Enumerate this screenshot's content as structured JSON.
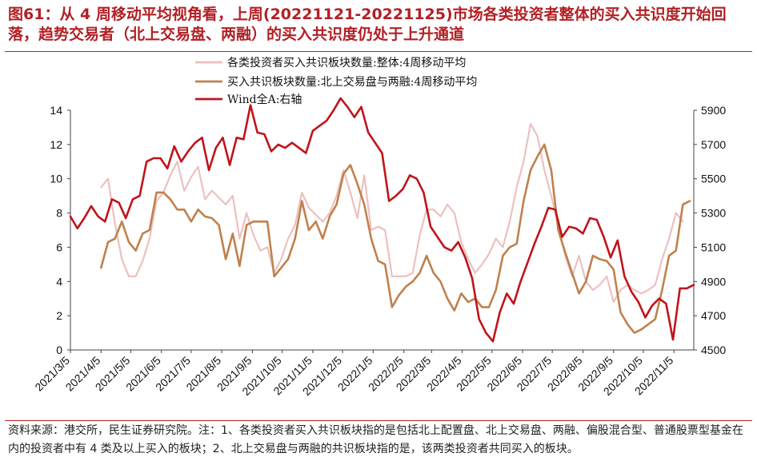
{
  "title": "图61：从 4 周移动平均视角看，上周(20221121-20221125)市场各类投资者整体的买入共识度开始回落，趋势交易者（北上交易盘、两融）的买入共识度仍处于上升通道",
  "footnote": "资料来源：港交所，民生证券研究院。注：1、各类投资者买入共识板块指的是包括北上配置盘、北上交易盘、两融、偏股混合型、普通股票型基金在内的投资者中有 4 类及以上买入的板块；2、北上交易盘与两融的共识板块指的是，该两类投资者共同买入的板块。",
  "colors": {
    "title_red": "#b22025",
    "series_pink": "#edc0c0",
    "series_brown": "#c0814d",
    "series_red": "#c0141b"
  },
  "chart_data": {
    "type": "line",
    "x_tick_labels": [
      "2021/3/5",
      "2021/4/5",
      "2021/5/5",
      "2021/6/5",
      "2021/7/5",
      "2021/8/5",
      "2021/9/5",
      "2021/10/5",
      "2021/11/5",
      "2021/12/5",
      "2022/1/5",
      "2022/2/5",
      "2022/3/5",
      "2022/4/5",
      "2022/5/5",
      "2022/6/5",
      "2022/7/5",
      "2022/8/5",
      "2022/9/5",
      "2022/10/5",
      "2022/11/5"
    ],
    "y_left": {
      "min": 0,
      "max": 14,
      "ticks": [
        0,
        2,
        4,
        6,
        8,
        10,
        12,
        14
      ]
    },
    "y_right": {
      "min": 4500,
      "max": 5900,
      "ticks": [
        4500,
        4700,
        4900,
        5100,
        5300,
        5500,
        5700,
        5900
      ]
    },
    "grid": false,
    "legend_position": "top-center",
    "series": [
      {
        "name": "各类投资者买入共识板块数量:整体:4周移动平均",
        "axis": "left",
        "color": "#edc0c0",
        "points": [
          [
            "2021-04-05",
            9.5
          ],
          [
            "2021-04-12",
            10.0
          ],
          [
            "2021-04-19",
            7.4
          ],
          [
            "2021-04-26",
            5.3
          ],
          [
            "2021-05-03",
            4.3
          ],
          [
            "2021-05-10",
            4.3
          ],
          [
            "2021-05-17",
            5.2
          ],
          [
            "2021-05-24",
            6.5
          ],
          [
            "2021-05-31",
            8.7
          ],
          [
            "2021-06-07",
            9.2
          ],
          [
            "2021-06-14",
            10.2
          ],
          [
            "2021-06-21",
            11.0
          ],
          [
            "2021-06-28",
            9.3
          ],
          [
            "2021-07-05",
            10.1
          ],
          [
            "2021-07-12",
            10.7
          ],
          [
            "2021-07-19",
            8.8
          ],
          [
            "2021-07-26",
            9.3
          ],
          [
            "2021-08-02",
            8.9
          ],
          [
            "2021-08-09",
            8.5
          ],
          [
            "2021-08-16",
            9.0
          ],
          [
            "2021-08-23",
            6.5
          ],
          [
            "2021-08-30",
            8.0
          ],
          [
            "2021-09-06",
            6.7
          ],
          [
            "2021-09-13",
            5.8
          ],
          [
            "2021-09-20",
            6.0
          ],
          [
            "2021-09-27",
            4.5
          ],
          [
            "2021-10-04",
            5.3
          ],
          [
            "2021-10-11",
            6.5
          ],
          [
            "2021-10-18",
            7.3
          ],
          [
            "2021-10-25",
            9.2
          ],
          [
            "2021-11-01",
            8.3
          ],
          [
            "2021-11-08",
            7.9
          ],
          [
            "2021-11-15",
            7.5
          ],
          [
            "2021-11-22",
            8.0
          ],
          [
            "2021-11-29",
            9.0
          ],
          [
            "2021-12-06",
            10.5
          ],
          [
            "2021-12-13",
            9.2
          ],
          [
            "2021-12-20",
            7.7
          ],
          [
            "2021-12-27",
            10.2
          ],
          [
            "2022-01-03",
            7.0
          ],
          [
            "2022-01-10",
            7.2
          ],
          [
            "2022-01-17",
            7.0
          ],
          [
            "2022-01-24",
            4.3
          ],
          [
            "2022-01-31",
            4.3
          ],
          [
            "2022-02-07",
            4.3
          ],
          [
            "2022-02-14",
            4.5
          ],
          [
            "2022-02-21",
            6.7
          ],
          [
            "2022-02-28",
            8.2
          ],
          [
            "2022-03-07",
            8.2
          ],
          [
            "2022-03-14",
            7.8
          ],
          [
            "2022-03-21",
            8.5
          ],
          [
            "2022-03-28",
            8.0
          ],
          [
            "2022-04-04",
            6.3
          ],
          [
            "2022-04-11",
            5.3
          ],
          [
            "2022-04-18",
            4.5
          ],
          [
            "2022-04-25",
            5.0
          ],
          [
            "2022-05-02",
            5.6
          ],
          [
            "2022-05-09",
            6.5
          ],
          [
            "2022-05-16",
            6.0
          ],
          [
            "2022-05-23",
            7.5
          ],
          [
            "2022-05-30",
            9.5
          ],
          [
            "2022-06-06",
            11.0
          ],
          [
            "2022-06-13",
            13.2
          ],
          [
            "2022-06-20",
            12.5
          ],
          [
            "2022-06-27",
            10.5
          ],
          [
            "2022-07-04",
            9.0
          ],
          [
            "2022-07-11",
            7.3
          ],
          [
            "2022-07-18",
            5.5
          ],
          [
            "2022-07-25",
            4.3
          ],
          [
            "2022-08-01",
            5.5
          ],
          [
            "2022-08-08",
            4.0
          ],
          [
            "2022-08-15",
            3.5
          ],
          [
            "2022-08-22",
            3.8
          ],
          [
            "2022-08-29",
            4.3
          ],
          [
            "2022-09-05",
            2.8
          ],
          [
            "2022-09-12",
            3.5
          ],
          [
            "2022-09-19",
            3.8
          ],
          [
            "2022-09-26",
            3.5
          ],
          [
            "2022-10-03",
            3.3
          ],
          [
            "2022-10-10",
            3.5
          ],
          [
            "2022-10-17",
            3.8
          ],
          [
            "2022-10-24",
            5.3
          ],
          [
            "2022-10-31",
            6.5
          ],
          [
            "2022-11-07",
            8.0
          ],
          [
            "2022-11-14",
            7.5
          ]
        ]
      },
      {
        "name": "买入共识板块数量:北上交易盘与两融:4周移动平均",
        "axis": "left",
        "color": "#c0814d",
        "points": [
          [
            "2021-04-05",
            4.8
          ],
          [
            "2021-04-12",
            6.3
          ],
          [
            "2021-04-19",
            6.5
          ],
          [
            "2021-04-26",
            7.5
          ],
          [
            "2021-05-03",
            6.3
          ],
          [
            "2021-05-10",
            5.8
          ],
          [
            "2021-05-17",
            6.8
          ],
          [
            "2021-05-24",
            7.0
          ],
          [
            "2021-05-31",
            9.2
          ],
          [
            "2021-06-07",
            9.2
          ],
          [
            "2021-06-14",
            8.8
          ],
          [
            "2021-06-21",
            8.2
          ],
          [
            "2021-06-28",
            8.2
          ],
          [
            "2021-07-05",
            7.5
          ],
          [
            "2021-07-12",
            8.2
          ],
          [
            "2021-07-19",
            7.8
          ],
          [
            "2021-07-26",
            7.7
          ],
          [
            "2021-08-02",
            7.3
          ],
          [
            "2021-08-09",
            5.3
          ],
          [
            "2021-08-16",
            6.8
          ],
          [
            "2021-08-23",
            4.9
          ],
          [
            "2021-08-30",
            7.3
          ],
          [
            "2021-09-06",
            7.5
          ],
          [
            "2021-09-13",
            7.5
          ],
          [
            "2021-09-20",
            7.5
          ],
          [
            "2021-09-27",
            4.3
          ],
          [
            "2021-10-04",
            4.8
          ],
          [
            "2021-10-11",
            5.3
          ],
          [
            "2021-10-18",
            6.5
          ],
          [
            "2021-10-25",
            8.7
          ],
          [
            "2021-11-01",
            7.0
          ],
          [
            "2021-11-08",
            7.5
          ],
          [
            "2021-11-15",
            6.5
          ],
          [
            "2021-11-22",
            7.8
          ],
          [
            "2021-11-29",
            8.5
          ],
          [
            "2021-12-06",
            10.3
          ],
          [
            "2021-12-13",
            10.8
          ],
          [
            "2021-12-20",
            9.7
          ],
          [
            "2021-12-27",
            8.5
          ],
          [
            "2022-01-03",
            6.5
          ],
          [
            "2022-01-10",
            5.2
          ],
          [
            "2022-01-17",
            5.0
          ],
          [
            "2022-01-24",
            2.5
          ],
          [
            "2022-01-31",
            3.2
          ],
          [
            "2022-02-07",
            3.7
          ],
          [
            "2022-02-14",
            4.0
          ],
          [
            "2022-02-21",
            4.5
          ],
          [
            "2022-02-28",
            5.5
          ],
          [
            "2022-03-07",
            4.5
          ],
          [
            "2022-03-14",
            4.0
          ],
          [
            "2022-03-21",
            3.0
          ],
          [
            "2022-03-28",
            2.3
          ],
          [
            "2022-04-04",
            3.3
          ],
          [
            "2022-04-11",
            2.8
          ],
          [
            "2022-04-18",
            3.0
          ],
          [
            "2022-04-25",
            2.5
          ],
          [
            "2022-05-02",
            2.5
          ],
          [
            "2022-05-09",
            3.5
          ],
          [
            "2022-05-16",
            5.5
          ],
          [
            "2022-05-23",
            6.0
          ],
          [
            "2022-05-30",
            6.2
          ],
          [
            "2022-06-06",
            8.7
          ],
          [
            "2022-06-13",
            10.5
          ],
          [
            "2022-06-20",
            11.3
          ],
          [
            "2022-06-27",
            12.0
          ],
          [
            "2022-07-04",
            10.5
          ],
          [
            "2022-07-11",
            7.0
          ],
          [
            "2022-07-18",
            5.7
          ],
          [
            "2022-07-25",
            4.5
          ],
          [
            "2022-08-01",
            3.3
          ],
          [
            "2022-08-08",
            4.0
          ],
          [
            "2022-08-15",
            5.5
          ],
          [
            "2022-08-22",
            5.3
          ],
          [
            "2022-08-29",
            5.2
          ],
          [
            "2022-09-05",
            4.7
          ],
          [
            "2022-09-12",
            2.2
          ],
          [
            "2022-09-19",
            1.5
          ],
          [
            "2022-09-26",
            1.0
          ],
          [
            "2022-10-03",
            1.2
          ],
          [
            "2022-10-10",
            1.5
          ],
          [
            "2022-10-17",
            1.8
          ],
          [
            "2022-10-24",
            3.5
          ],
          [
            "2022-10-31",
            5.5
          ],
          [
            "2022-11-07",
            5.8
          ],
          [
            "2022-11-14",
            8.5
          ],
          [
            "2022-11-21",
            8.7
          ]
        ]
      },
      {
        "name": "Wind全A:右轴",
        "axis": "right",
        "color": "#c0141b",
        "points": [
          [
            "2021-03-05",
            5280
          ],
          [
            "2021-03-12",
            5210
          ],
          [
            "2021-03-19",
            5270
          ],
          [
            "2021-03-26",
            5340
          ],
          [
            "2021-04-02",
            5280
          ],
          [
            "2021-04-09",
            5250
          ],
          [
            "2021-04-16",
            5380
          ],
          [
            "2021-04-23",
            5360
          ],
          [
            "2021-04-30",
            5270
          ],
          [
            "2021-05-07",
            5380
          ],
          [
            "2021-05-14",
            5400
          ],
          [
            "2021-05-21",
            5600
          ],
          [
            "2021-05-28",
            5620
          ],
          [
            "2021-06-04",
            5620
          ],
          [
            "2021-06-11",
            5560
          ],
          [
            "2021-06-18",
            5690
          ],
          [
            "2021-06-25",
            5600
          ],
          [
            "2021-07-02",
            5660
          ],
          [
            "2021-07-09",
            5710
          ],
          [
            "2021-07-16",
            5740
          ],
          [
            "2021-07-23",
            5550
          ],
          [
            "2021-07-30",
            5680
          ],
          [
            "2021-08-06",
            5740
          ],
          [
            "2021-08-13",
            5580
          ],
          [
            "2021-08-20",
            5740
          ],
          [
            "2021-08-27",
            5730
          ],
          [
            "2021-09-03",
            5930
          ],
          [
            "2021-09-10",
            5770
          ],
          [
            "2021-09-17",
            5760
          ],
          [
            "2021-09-24",
            5660
          ],
          [
            "2021-10-01",
            5700
          ],
          [
            "2021-10-08",
            5680
          ],
          [
            "2021-10-15",
            5710
          ],
          [
            "2021-10-22",
            5680
          ],
          [
            "2021-10-29",
            5650
          ],
          [
            "2021-11-05",
            5780
          ],
          [
            "2021-11-12",
            5810
          ],
          [
            "2021-11-19",
            5840
          ],
          [
            "2021-11-26",
            5900
          ],
          [
            "2021-12-03",
            5970
          ],
          [
            "2021-12-10",
            5920
          ],
          [
            "2021-12-17",
            5860
          ],
          [
            "2021-12-24",
            5920
          ],
          [
            "2021-12-31",
            5770
          ],
          [
            "2022-01-07",
            5710
          ],
          [
            "2022-01-14",
            5650
          ],
          [
            "2022-01-21",
            5370
          ],
          [
            "2022-01-28",
            5400
          ],
          [
            "2022-02-04",
            5440
          ],
          [
            "2022-02-11",
            5520
          ],
          [
            "2022-02-18",
            5500
          ],
          [
            "2022-02-25",
            5420
          ],
          [
            "2022-03-04",
            5220
          ],
          [
            "2022-03-11",
            5160
          ],
          [
            "2022-03-18",
            5100
          ],
          [
            "2022-03-25",
            5080
          ],
          [
            "2022-04-01",
            5130
          ],
          [
            "2022-04-08",
            5040
          ],
          [
            "2022-04-15",
            4920
          ],
          [
            "2022-04-22",
            4680
          ],
          [
            "2022-04-29",
            4600
          ],
          [
            "2022-05-06",
            4550
          ],
          [
            "2022-05-13",
            4720
          ],
          [
            "2022-05-20",
            4830
          ],
          [
            "2022-05-27",
            4770
          ],
          [
            "2022-06-03",
            4900
          ],
          [
            "2022-06-10",
            5010
          ],
          [
            "2022-06-17",
            5120
          ],
          [
            "2022-06-24",
            5220
          ],
          [
            "2022-07-01",
            5330
          ],
          [
            "2022-07-08",
            5320
          ],
          [
            "2022-07-15",
            5160
          ],
          [
            "2022-07-22",
            5220
          ],
          [
            "2022-07-29",
            5210
          ],
          [
            "2022-08-05",
            5180
          ],
          [
            "2022-08-12",
            5270
          ],
          [
            "2022-08-19",
            5260
          ],
          [
            "2022-08-26",
            5160
          ],
          [
            "2022-09-02",
            5040
          ],
          [
            "2022-09-09",
            5140
          ],
          [
            "2022-09-16",
            4930
          ],
          [
            "2022-09-23",
            4840
          ],
          [
            "2022-09-30",
            4780
          ],
          [
            "2022-10-07",
            4690
          ],
          [
            "2022-10-14",
            4760
          ],
          [
            "2022-10-21",
            4800
          ],
          [
            "2022-10-28",
            4770
          ],
          [
            "2022-11-04",
            4560
          ],
          [
            "2022-11-11",
            4860
          ],
          [
            "2022-11-18",
            4860
          ],
          [
            "2022-11-25",
            4880
          ]
        ]
      }
    ]
  }
}
